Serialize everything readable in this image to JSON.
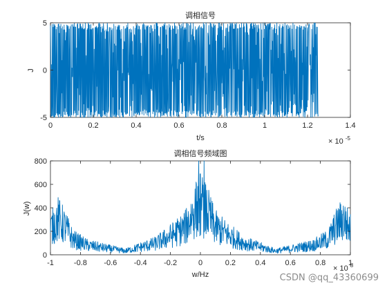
{
  "watermark": "CSDN @qq_43360699",
  "colors": {
    "series": "#0072BD",
    "axis": "#262626"
  },
  "chart_data": [
    {
      "type": "line",
      "title": "调相信号",
      "xlabel": "t/s",
      "ylabel": "J",
      "xlim": [
        0,
        1.4e-05
      ],
      "ylim": [
        -5,
        5
      ],
      "x_exponent_base": "× 10",
      "x_exponent_power": "-5",
      "xticks": [
        0,
        2e-06,
        4e-06,
        6e-06,
        8e-06,
        1e-05,
        1.2e-05,
        1.4e-05
      ],
      "xtick_labels": [
        "0",
        "0.2",
        "0.4",
        "0.6",
        "0.8",
        "1",
        "1.2",
        "1.4"
      ],
      "yticks": [
        -5,
        0,
        5
      ],
      "ytick_labels": [
        "-5",
        "0",
        "5"
      ],
      "grid": false,
      "series": [
        {
          "description_of_shape": "dense oscillation between -5 and 5 over t = 0 … 1.25e-5 s",
          "x_start": 0,
          "x_end": 1.25e-05,
          "amplitude": 5,
          "samples": 900
        }
      ]
    },
    {
      "type": "line",
      "title": "调相信号频域图",
      "xlabel": "w/Hz",
      "ylabel": "J(w)",
      "xlim": [
        -100000000.0,
        100000000.0
      ],
      "ylim": [
        0,
        800
      ],
      "x_exponent_base": "× 10",
      "x_exponent_power": "8",
      "xticks": [
        -100000000.0,
        -80000000.0,
        -60000000.0,
        -40000000.0,
        -20000000.0,
        0,
        20000000.0,
        40000000.0,
        60000000.0,
        80000000.0,
        100000000.0
      ],
      "xtick_labels": [
        "-1",
        "-0.8",
        "-0.6",
        "-0.4",
        "-0.2",
        "0",
        "0.2",
        "0.4",
        "0.6",
        "0.8",
        "1"
      ],
      "yticks": [
        0,
        200,
        400,
        600,
        800
      ],
      "ytick_labels": [
        "0",
        "200",
        "400",
        "600",
        "800"
      ],
      "grid": false,
      "series": [
        {
          "description_of_shape": "spectrum: peaks near edges (~600) and center (~800), troughs near ±0.5e8 (~50)",
          "x_start": -100000000.0,
          "x_end": 100000000.0,
          "envelope_points": [
            [
              -100000000.0,
              300
            ],
            [
              -95000000.0,
              420
            ],
            [
              -90000000.0,
              320
            ],
            [
              -85000000.0,
              180
            ],
            [
              -75000000.0,
              110
            ],
            [
              -60000000.0,
              70
            ],
            [
              -50000000.0,
              45
            ],
            [
              -40000000.0,
              90
            ],
            [
              -30000000.0,
              130
            ],
            [
              -20000000.0,
              220
            ],
            [
              -10000000.0,
              320
            ],
            [
              -5000000.0,
              480
            ],
            [
              0,
              600
            ],
            [
              5000000.0,
              480
            ],
            [
              10000000.0,
              320
            ],
            [
              20000000.0,
              220
            ],
            [
              30000000.0,
              130
            ],
            [
              40000000.0,
              90
            ],
            [
              50000000.0,
              45
            ],
            [
              60000000.0,
              70
            ],
            [
              75000000.0,
              110
            ],
            [
              85000000.0,
              180
            ],
            [
              90000000.0,
              320
            ],
            [
              95000000.0,
              420
            ],
            [
              100000000.0,
              300
            ]
          ],
          "samples": 900
        }
      ]
    }
  ]
}
